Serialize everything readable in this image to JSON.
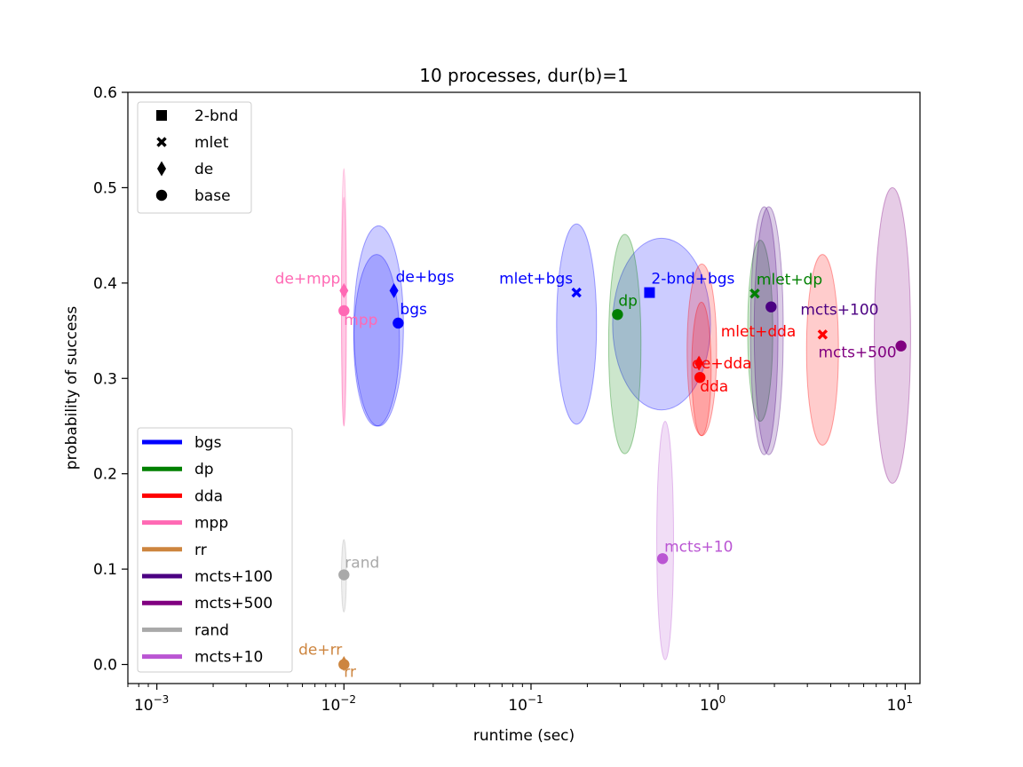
{
  "chart_data": {
    "type": "scatter",
    "title": "10 processes, dur(b)=1",
    "xlabel": "runtime (sec)",
    "ylabel": "probability of success",
    "xscale": "log",
    "xlim": [
      0.0007,
      12
    ],
    "ylim": [
      -0.02,
      0.6
    ],
    "grid": false,
    "xticks": [
      {
        "value": 0.001,
        "base": "10",
        "exp": "−3"
      },
      {
        "value": 0.01,
        "base": "10",
        "exp": "−2"
      },
      {
        "value": 0.1,
        "base": "10",
        "exp": "−1"
      },
      {
        "value": 1,
        "base": "10",
        "exp": "0"
      },
      {
        "value": 10,
        "base": "10",
        "exp": "1"
      }
    ],
    "yticks": [
      {
        "value": 0.0,
        "label": "0.0"
      },
      {
        "value": 0.1,
        "label": "0.1"
      },
      {
        "value": 0.2,
        "label": "0.2"
      },
      {
        "value": 0.3,
        "label": "0.3"
      },
      {
        "value": 0.4,
        "label": "0.4"
      },
      {
        "value": 0.5,
        "label": "0.5"
      },
      {
        "value": 0.6,
        "label": "0.6"
      }
    ],
    "colors": {
      "bgs": "#0000ff",
      "dp": "#008000",
      "dda": "#ff0000",
      "mpp": "#ff69b4",
      "rr": "#cd853f",
      "mcts+100": "#4b0082",
      "mcts+500": "#800080",
      "rand": "#a9a9a9",
      "mcts+10": "#ba55d3"
    },
    "marker_legend": {
      "position": "upper-left",
      "items": [
        {
          "marker": "square",
          "label": "2-bnd"
        },
        {
          "marker": "x",
          "label": "mlet"
        },
        {
          "marker": "diamond",
          "label": "de"
        },
        {
          "marker": "circle",
          "label": "base"
        }
      ]
    },
    "color_legend": {
      "position": "lower-left",
      "items": [
        {
          "algo": "bgs",
          "label": "bgs"
        },
        {
          "algo": "dp",
          "label": "dp"
        },
        {
          "algo": "dda",
          "label": "dda"
        },
        {
          "algo": "mpp",
          "label": "mpp"
        },
        {
          "algo": "rr",
          "label": "rr"
        },
        {
          "algo": "mcts+100",
          "label": "mcts+100"
        },
        {
          "algo": "mcts+500",
          "label": "mcts+500"
        },
        {
          "algo": "rand",
          "label": "rand"
        },
        {
          "algo": "mcts+10",
          "label": "mcts+10"
        }
      ]
    },
    "variance_ellipses": [
      {
        "algo": "bgs",
        "cx": 0.0153,
        "cy": 0.355,
        "x_lo": 0.0113,
        "x_hi": 0.0208,
        "ry": 0.105
      },
      {
        "algo": "bgs",
        "cx": 0.015,
        "cy": 0.34,
        "x_lo": 0.0113,
        "x_hi": 0.0198,
        "ry": 0.09
      },
      {
        "algo": "bgs",
        "cx": 0.175,
        "cy": 0.357,
        "x_lo": 0.137,
        "x_hi": 0.224,
        "ry": 0.105
      },
      {
        "algo": "bgs",
        "cx": 0.5,
        "cy": 0.357,
        "x_lo": 0.273,
        "x_hi": 0.911,
        "ry": 0.09
      },
      {
        "algo": "dp",
        "cx": 0.325,
        "cy": 0.336,
        "x_lo": 0.26,
        "x_hi": 0.387,
        "ry": 0.115
      },
      {
        "algo": "dp",
        "cx": 1.68,
        "cy": 0.35,
        "x_lo": 1.44,
        "x_hi": 1.96,
        "ry": 0.095
      },
      {
        "algo": "dda",
        "cx": 0.825,
        "cy": 0.33,
        "x_lo": 0.683,
        "x_hi": 0.982,
        "ry": 0.09
      },
      {
        "algo": "dda",
        "cx": 0.81,
        "cy": 0.31,
        "x_lo": 0.723,
        "x_hi": 0.918,
        "ry": 0.07
      },
      {
        "algo": "dda",
        "cx": 3.62,
        "cy": 0.33,
        "x_lo": 2.97,
        "x_hi": 4.4,
        "ry": 0.1
      },
      {
        "algo": "mcts+100",
        "cx": 1.88,
        "cy": 0.35,
        "x_lo": 1.56,
        "x_hi": 2.23,
        "ry": 0.13
      },
      {
        "algo": "mcts+100",
        "cx": 1.78,
        "cy": 0.35,
        "x_lo": 1.49,
        "x_hi": 2.09,
        "ry": 0.13
      },
      {
        "algo": "mcts+500",
        "cx": 8.55,
        "cy": 0.345,
        "x_lo": 6.84,
        "x_hi": 10.69,
        "ry": 0.155
      },
      {
        "algo": "mcts+10",
        "cx": 0.523,
        "cy": 0.13,
        "x_lo": 0.47,
        "x_hi": 0.578,
        "ry": 0.125
      },
      {
        "algo": "mpp",
        "cx": 0.01,
        "cy": 0.385,
        "x_lo": 0.0097,
        "x_hi": 0.0103,
        "ry": 0.135
      },
      {
        "algo": "mpp",
        "cx": 0.01,
        "cy": 0.37,
        "x_lo": 0.0097,
        "x_hi": 0.0103,
        "ry": 0.12
      },
      {
        "algo": "rand",
        "cx": 0.01,
        "cy": 0.093,
        "x_lo": 0.0097,
        "x_hi": 0.0103,
        "ry": 0.038
      }
    ],
    "points": [
      {
        "label": "bgs",
        "algo": "bgs",
        "marker": "circle",
        "x": 0.0195,
        "y": 0.358,
        "label_anchor": "start",
        "label_dx": 2,
        "label_dy": -10
      },
      {
        "label": "de+bgs",
        "algo": "bgs",
        "marker": "diamond",
        "x": 0.0185,
        "y": 0.392,
        "label_anchor": "start",
        "label_dx": 2,
        "label_dy": -10
      },
      {
        "label": "mlet+bgs",
        "algo": "bgs",
        "marker": "x",
        "x": 0.175,
        "y": 0.39,
        "label_anchor": "end",
        "label_dx": -4,
        "label_dy": -10
      },
      {
        "label": "2-bnd+bgs",
        "algo": "bgs",
        "marker": "square",
        "x": 0.43,
        "y": 0.39,
        "label_anchor": "start",
        "label_dx": 2,
        "label_dy": -10
      },
      {
        "label": "dp",
        "algo": "dp",
        "marker": "circle",
        "x": 0.29,
        "y": 0.367,
        "label_anchor": "start",
        "label_dx": 1,
        "label_dy": -10
      },
      {
        "label": "mlet+dp",
        "algo": "dp",
        "marker": "x",
        "x": 1.57,
        "y": 0.389,
        "label_anchor": "start",
        "label_dx": 2,
        "label_dy": -10
      },
      {
        "label": "dda",
        "algo": "dda",
        "marker": "circle",
        "x": 0.8,
        "y": 0.301,
        "label_anchor": "start",
        "label_dx": 0,
        "label_dy": 16
      },
      {
        "label": "de+dda",
        "algo": "dda",
        "marker": "diamond",
        "x": 0.79,
        "y": 0.316,
        "label_anchor": "start",
        "label_dx": -8,
        "label_dy": 6
      },
      {
        "label": "mlet+dda",
        "algo": "dda",
        "marker": "x",
        "x": 3.62,
        "y": 0.346,
        "label_anchor": "end",
        "label_dx": -30,
        "label_dy": 2
      },
      {
        "label": "mpp",
        "algo": "mpp",
        "marker": "circle",
        "x": 0.01,
        "y": 0.371,
        "label_anchor": "start",
        "label_dx": 0,
        "label_dy": 16
      },
      {
        "label": "de+mpp",
        "algo": "mpp",
        "marker": "diamond",
        "x": 0.01,
        "y": 0.392,
        "label_anchor": "end",
        "label_dx": -4,
        "label_dy": -8
      },
      {
        "label": "rr",
        "algo": "rr",
        "marker": "circle",
        "x": 0.01,
        "y": 0.0,
        "label_anchor": "start",
        "label_dx": 0,
        "label_dy": 14
      },
      {
        "label": "de+rr",
        "algo": "rr",
        "marker": "diamond",
        "x": 0.01,
        "y": 0.001,
        "label_anchor": "end",
        "label_dx": -2,
        "label_dy": -10
      },
      {
        "label": "mcts+100",
        "algo": "mcts+100",
        "marker": "circle",
        "x": 1.92,
        "y": 0.375,
        "label_anchor": "start",
        "label_dx": 33,
        "label_dy": 9
      },
      {
        "label": "mcts+500",
        "algo": "mcts+500",
        "marker": "circle",
        "x": 9.5,
        "y": 0.334,
        "label_anchor": "end",
        "label_dx": -5,
        "label_dy": 13
      },
      {
        "label": "rand",
        "algo": "rand",
        "marker": "circle",
        "x": 0.01,
        "y": 0.094,
        "label_anchor": "start",
        "label_dx": 1,
        "label_dy": -8
      },
      {
        "label": "mcts+10",
        "algo": "mcts+10",
        "marker": "circle",
        "x": 0.505,
        "y": 0.111,
        "label_anchor": "start",
        "label_dx": 2,
        "label_dy": -8
      }
    ]
  }
}
